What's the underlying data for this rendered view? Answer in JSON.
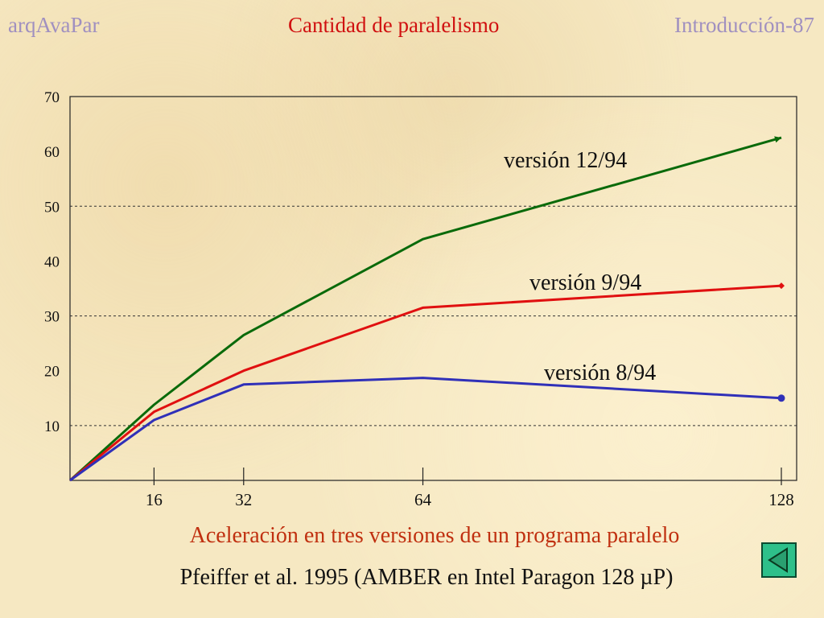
{
  "header": {
    "left": "arqAvaPar",
    "center": "Cantidad de paralelismo",
    "right": "Introducción-87"
  },
  "chart_data": {
    "type": "line",
    "title": "",
    "xlabel": "",
    "ylabel": "",
    "x_ticks": [
      16,
      32,
      64,
      128
    ],
    "y_ticks": [
      10,
      20,
      30,
      40,
      50,
      60,
      70
    ],
    "ylim": [
      0,
      70
    ],
    "gridlines_y": [
      10,
      30,
      50
    ],
    "series": [
      {
        "name": "versión 12/94",
        "color": "#0a6a0a",
        "marker": "arrow",
        "x": [
          1,
          16,
          32,
          64,
          128
        ],
        "y": [
          0,
          13.8,
          26.5,
          44,
          62.5
        ]
      },
      {
        "name": "versión 9/94",
        "color": "#e01010",
        "marker": "diamond",
        "x": [
          1,
          16,
          32,
          64,
          128
        ],
        "y": [
          0,
          12.5,
          20,
          31.5,
          35.5
        ]
      },
      {
        "name": "versión 8/94",
        "color": "#3030b8",
        "marker": "circle",
        "x": [
          1,
          16,
          32,
          64,
          128
        ],
        "y": [
          0,
          11,
          17.5,
          18.7,
          15
        ]
      }
    ]
  },
  "caption": "Aceleración en tres versiones de un programa paralelo",
  "citation": "Pfeiffer et al. 1995 (AMBER en Intel Paragon 128 µP)",
  "nav": {
    "back_icon": "back-triangle-icon",
    "color": "#2ec08a"
  }
}
